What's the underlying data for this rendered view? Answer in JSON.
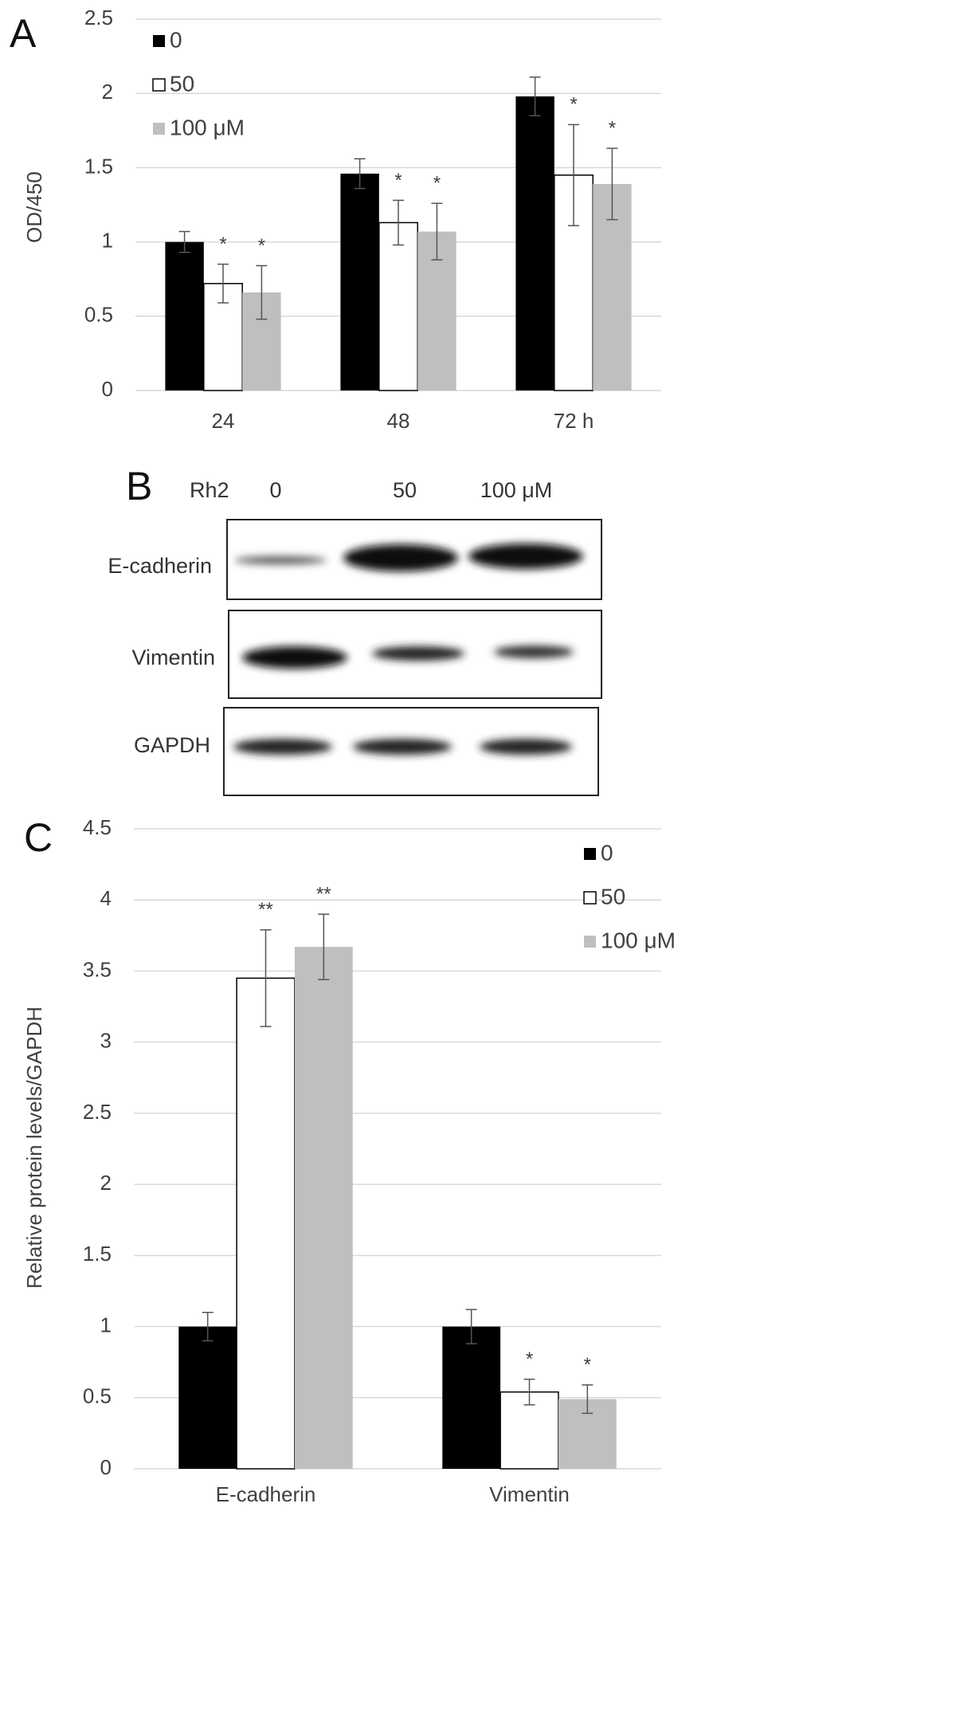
{
  "chart_data": [
    {
      "type": "bar",
      "panel_label": "A",
      "ylabel": "OD/450",
      "categories": [
        "24",
        "48",
        "72 h"
      ],
      "series": [
        {
          "name": "0",
          "color": "#000000",
          "values": [
            1.0,
            1.46,
            1.98
          ],
          "errors": [
            0.07,
            0.1,
            0.13
          ]
        },
        {
          "name": "50",
          "color": "#ffffff",
          "values": [
            0.72,
            1.13,
            1.45
          ],
          "errors": [
            0.13,
            0.15,
            0.34
          ],
          "annotations": [
            "*",
            "*",
            "*"
          ]
        },
        {
          "name": "100 μM",
          "color": "#bfbfbf",
          "values": [
            0.66,
            1.07,
            1.39
          ],
          "errors": [
            0.18,
            0.19,
            0.24
          ],
          "annotations": [
            "*",
            "*",
            "*"
          ]
        }
      ],
      "ylim": [
        0,
        2.5
      ],
      "yticks": [
        0,
        0.5,
        1,
        1.5,
        2,
        2.5
      ],
      "grid": true,
      "legend": "upper left"
    },
    {
      "type": "bar",
      "panel_label": "C",
      "ylabel": "Relative protein levels/GAPDH",
      "categories": [
        "E-cadherin",
        "Vimentin"
      ],
      "series": [
        {
          "name": "0",
          "color": "#000000",
          "values": [
            1,
            1
          ],
          "errors": [
            0.1,
            0.12
          ]
        },
        {
          "name": "50",
          "color": "#ffffff",
          "values": [
            3.45,
            0.54
          ],
          "errors": [
            0.34,
            0.09
          ],
          "annotations": [
            "**",
            "*"
          ]
        },
        {
          "name": "100 μM",
          "color": "#bfbfbf",
          "values": [
            3.67,
            0.49
          ],
          "errors": [
            0.23,
            0.1
          ],
          "annotations": [
            "**",
            "*"
          ]
        }
      ],
      "ylim": [
        0,
        4.5
      ],
      "yticks": [
        0,
        0.5,
        1,
        1.5,
        2,
        2.5,
        3,
        3.5,
        4,
        4.5
      ],
      "grid": true,
      "legend": "upper right"
    }
  ],
  "blot": {
    "panel_label": "B",
    "treatment_label": "Rh2",
    "lanes": [
      "0",
      "50",
      "100 μM"
    ],
    "rows": [
      "E-cadherin",
      "Vimentin",
      "GAPDH"
    ]
  }
}
